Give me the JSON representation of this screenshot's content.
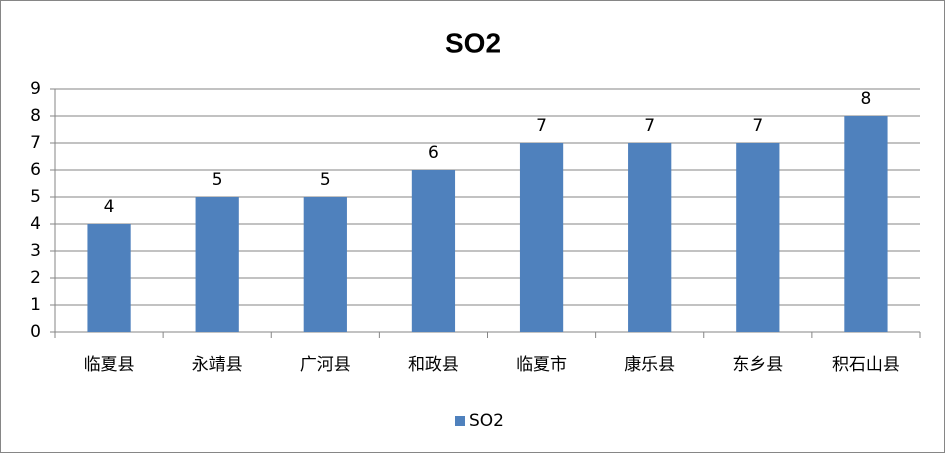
{
  "chart_data": {
    "type": "bar",
    "title": "SO2",
    "categories": [
      "临夏县",
      "永靖县",
      "广河县",
      "和政县",
      "临夏市",
      "康乐县",
      "东乡县",
      "积石山县"
    ],
    "series": [
      {
        "name": "SO2",
        "color": "#4f81bd",
        "values": [
          4,
          5,
          5,
          6,
          7,
          7,
          7,
          8
        ]
      }
    ],
    "ylim": [
      0,
      9
    ],
    "yticks": [
      0,
      1,
      2,
      3,
      4,
      5,
      6,
      7,
      8,
      9
    ],
    "grid": true,
    "legend": "bottom"
  }
}
